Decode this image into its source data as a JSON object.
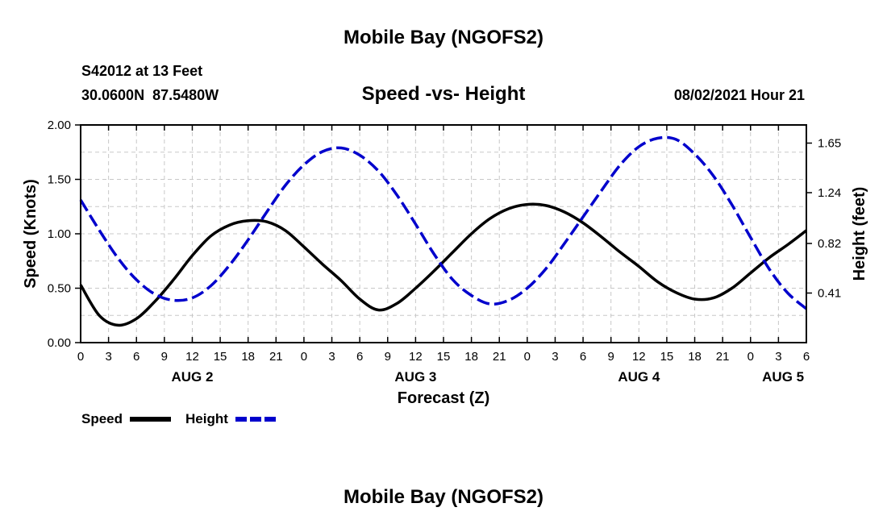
{
  "chart_data": {
    "type": "line",
    "title": "Mobile Bay (NGOFS2)",
    "footer_title": "Mobile Bay (NGOFS2)",
    "station_line1": "S42012 at 13 Feet",
    "station_line2": "30.0600N  87.5480W",
    "subtitle": "Speed -vs- Height",
    "datetime": "08/02/2021 Hour 21",
    "xlabel": "Forecast (Z)",
    "ylabel_left": "Speed (Knots)",
    "ylabel_right": "Height (feet)",
    "x_range_hours": [
      0,
      78
    ],
    "x_tick_labels": [
      "0",
      "3",
      "6",
      "9",
      "12",
      "15",
      "18",
      "21",
      "0",
      "3",
      "6",
      "9",
      "12",
      "15",
      "18",
      "21",
      "0",
      "3",
      "6",
      "9",
      "12",
      "15",
      "18",
      "21",
      "0",
      "3",
      "6"
    ],
    "date_labels": [
      {
        "label": "AUG 2",
        "hour": 12
      },
      {
        "label": "AUG 3",
        "hour": 36
      },
      {
        "label": "AUG 4",
        "hour": 60
      },
      {
        "label": "AUG 5",
        "hour": 75.5
      }
    ],
    "ylim_left": [
      0,
      2.0
    ],
    "y_left_ticks": [
      "0.00",
      "0.50",
      "1.00",
      "1.50",
      "2.00"
    ],
    "y_left_tick_values": [
      0,
      0.5,
      1.0,
      1.5,
      2.0
    ],
    "ylim_right": [
      0.0,
      1.8
    ],
    "y_right_ticks": [
      "0.41",
      "0.82",
      "1.24",
      "1.65"
    ],
    "y_right_tick_values": [
      0.41,
      0.82,
      1.24,
      1.65
    ],
    "grid": true,
    "legend_position": "bottom-left",
    "series": [
      {
        "name": "Speed",
        "legend_label": "Speed",
        "axis": "left",
        "color": "#000000",
        "style": "solid",
        "x": [
          0,
          2,
          4,
          6,
          8,
          10,
          12,
          14,
          16,
          18,
          20,
          22,
          24,
          26,
          28,
          30,
          32,
          34,
          36,
          38,
          40,
          42,
          44,
          46,
          48,
          50,
          52,
          54,
          56,
          58,
          60,
          62,
          64,
          66,
          68,
          70,
          72,
          74,
          76,
          78
        ],
        "y": [
          0.53,
          0.25,
          0.16,
          0.22,
          0.38,
          0.58,
          0.8,
          0.98,
          1.08,
          1.12,
          1.11,
          1.03,
          0.88,
          0.72,
          0.57,
          0.4,
          0.3,
          0.36,
          0.5,
          0.66,
          0.83,
          1.0,
          1.14,
          1.23,
          1.27,
          1.26,
          1.2,
          1.1,
          0.97,
          0.83,
          0.7,
          0.56,
          0.46,
          0.4,
          0.41,
          0.5,
          0.64,
          0.78,
          0.9,
          1.03
        ]
      },
      {
        "name": "Height",
        "legend_label": "Height",
        "axis": "right",
        "color": "#0000cc",
        "style": "dashed",
        "x": [
          0,
          2,
          4,
          6,
          8,
          10,
          12,
          14,
          16,
          18,
          20,
          22,
          24,
          26,
          28,
          30,
          32,
          34,
          36,
          38,
          40,
          42,
          44,
          46,
          48,
          50,
          52,
          54,
          56,
          58,
          60,
          62,
          64,
          66,
          68,
          70,
          72,
          74,
          76,
          78
        ],
        "y": [
          1.18,
          0.93,
          0.7,
          0.52,
          0.4,
          0.35,
          0.37,
          0.47,
          0.64,
          0.85,
          1.08,
          1.3,
          1.47,
          1.58,
          1.61,
          1.55,
          1.42,
          1.22,
          0.98,
          0.73,
          0.52,
          0.39,
          0.32,
          0.35,
          0.45,
          0.61,
          0.82,
          1.04,
          1.26,
          1.47,
          1.62,
          1.69,
          1.68,
          1.56,
          1.38,
          1.14,
          0.87,
          0.61,
          0.41,
          0.28
        ]
      }
    ]
  }
}
